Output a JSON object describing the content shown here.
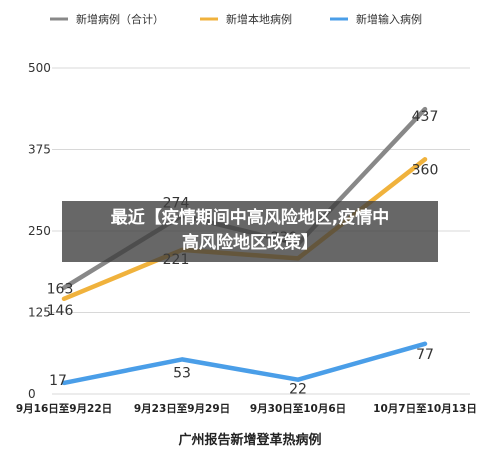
{
  "chart_data": {
    "type": "line",
    "categories": [
      "9月16日至9月22日",
      "9月23日至9月29日",
      "9月30日至10月6日",
      "10月7日至10月13日"
    ],
    "series": [
      {
        "name": "新增病例（合计）",
        "color": "#888888",
        "values": [
          163,
          274,
          230,
          437
        ],
        "labels": [
          "163",
          "274",
          "230",
          "437"
        ]
      },
      {
        "name": "新增本地病例",
        "color": "#f0b23c",
        "values": [
          146,
          221,
          208,
          360
        ],
        "labels": [
          "146",
          "221",
          "",
          "360"
        ]
      },
      {
        "name": "新增输入病例",
        "color": "#4a9ee8",
        "values": [
          17,
          53,
          22,
          77
        ],
        "labels": [
          "17",
          "53",
          "22",
          "77"
        ]
      }
    ],
    "yticks": [
      0,
      125,
      250,
      375,
      500
    ],
    "ylim": [
      0,
      500
    ],
    "grid": true,
    "legend_position": "top",
    "caption": "广州报告新增登革热病例"
  },
  "overlay": {
    "line1": "最近【疫情期间中高风险地区,疫情中",
    "line2": "高风险地区政策】"
  }
}
